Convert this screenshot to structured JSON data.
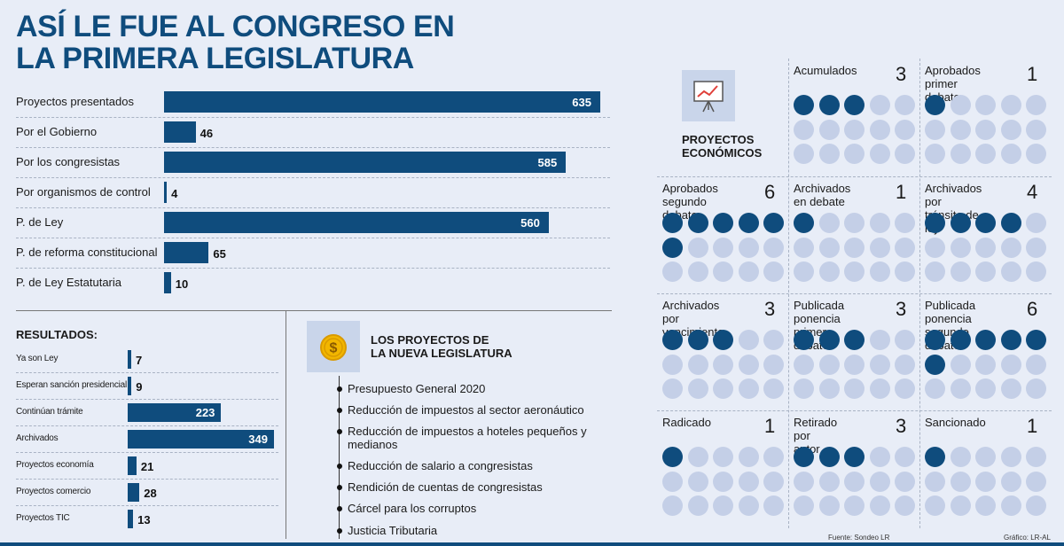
{
  "title": {
    "line1": "ASÍ LE FUE AL CONGRESO EN",
    "line2": "LA PRIMERA LEGISLATURA"
  },
  "chart_data": [
    {
      "type": "bar",
      "orientation": "horizontal",
      "categories": [
        "Proyectos presentados",
        "Por el Gobierno",
        "Por los congresistas",
        "Por organismos de control",
        "P. de Ley",
        "P. de reforma constitucional",
        "P. de Ley Estatutaria"
      ],
      "values": [
        635,
        46,
        585,
        4,
        560,
        65,
        10
      ]
    },
    {
      "type": "bar",
      "orientation": "horizontal",
      "title": "RESULTADOS:",
      "categories": [
        "Ya son Ley",
        "Esperan sanción presidencial",
        "Continúan trámite",
        "Archivados",
        "Proyectos economía",
        "Proyectos comercio",
        "Proyectos TIC"
      ],
      "values": [
        7,
        9,
        223,
        349,
        21,
        28,
        13
      ]
    },
    {
      "type": "table",
      "title": "PROYECTOS ECONÓMICOS",
      "total_dots_per_cell": 15,
      "categories": [
        "Acumulados",
        "Aprobados primer debate",
        "Aprobados segundo debate",
        "Archivados en debate",
        "Archivados por tránsito de ley",
        "Archivados por vencimiento",
        "Publicada ponencia primer debate",
        "Publicada ponencia segundo debate",
        "Radicado",
        "Retirado por autor",
        "Sancionado"
      ],
      "values": [
        3,
        1,
        6,
        1,
        4,
        3,
        3,
        6,
        1,
        3,
        1
      ]
    }
  ],
  "econ_labels": [
    [
      "Acumulados",
      ""
    ],
    [
      "Aprobados",
      "primer debate"
    ],
    [
      "Aprobados",
      "segundo debate"
    ],
    [
      "Archivados",
      "en debate"
    ],
    [
      "Archivados por",
      "tránsito de ley"
    ],
    [
      "Archivados por",
      "vencimiento"
    ],
    [
      "Publicada ponencia",
      "primer debate"
    ],
    [
      "Publicada ponencia",
      "segundo debate"
    ],
    [
      "Radicado",
      ""
    ],
    [
      "Retirado por autor",
      ""
    ],
    [
      "Sancionado",
      ""
    ]
  ],
  "econ_heading": {
    "line1": "PROYECTOS",
    "line2": "ECONÓMICOS"
  },
  "legislatura": {
    "heading_line1": "LOS PROYECTOS DE",
    "heading_line2": "LA NUEVA LEGISLATURA",
    "items": [
      "Presupuesto General 2020",
      "Reducción de impuestos al sector aeronáutico",
      "Reducción de impuestos a hoteles pequeños y medianos",
      "Reducción de salario a congresistas",
      "Rendición de cuentas de congresistas",
      "Cárcel para los corruptos",
      "Justicia Tributaria"
    ]
  },
  "footer": {
    "source": "Fuente: Sondeo LR",
    "credit": "Gráfico: LR-AL"
  },
  "colors": {
    "bar": "#0f4c7d",
    "dot_on": "#0f4c7d",
    "dot_off": "#c4cfe7",
    "background": "#e8edf7"
  },
  "icons": {
    "econ": "presentation-chart-icon",
    "legislatura": "coin-dollar-icon"
  }
}
